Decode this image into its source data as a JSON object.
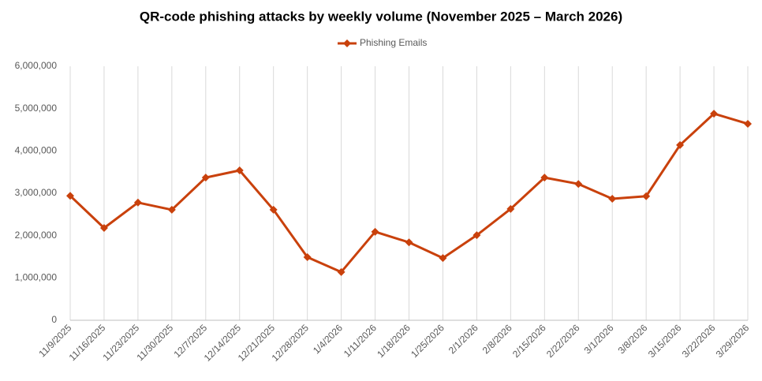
{
  "chart_data": {
    "type": "line",
    "title": "QR-code phishing attacks by weekly volume (November 2025 – March 2026)",
    "categories": [
      "11/9/2025",
      "11/16/2025",
      "11/23/2025",
      "11/30/2025",
      "12/7/2025",
      "12/14/2025",
      "12/21/2025",
      "12/28/2025",
      "1/4/2026",
      "1/11/2026",
      "1/18/2026",
      "1/25/2026",
      "2/1/2026",
      "2/8/2026",
      "2/15/2026",
      "2/22/2026",
      "3/1/2026",
      "3/8/2026",
      "3/15/2026",
      "3/22/2026",
      "3/29/2026"
    ],
    "series": [
      {
        "name": "Phishing Emails",
        "color": "#c9410c",
        "values": [
          2940000,
          2180000,
          2780000,
          2610000,
          3370000,
          3540000,
          2610000,
          1490000,
          1140000,
          2090000,
          1840000,
          1470000,
          2010000,
          2630000,
          3370000,
          3220000,
          2870000,
          2930000,
          4140000,
          4880000,
          4640000
        ]
      }
    ],
    "ylim": [
      0,
      6000000
    ],
    "yticks": [
      0,
      {
        "value": 1000000,
        "label": "1,000,000"
      },
      {
        "value": 2000000,
        "label": "2,000,000"
      },
      {
        "value": 3000000,
        "label": "3,000,000"
      },
      {
        "value": 4000000,
        "label": "4,000,000"
      },
      {
        "value": 5000000,
        "label": "5,000,000"
      },
      {
        "value": 6000000,
        "label": "6,000,000"
      }
    ],
    "grid": "x",
    "legend": "top"
  }
}
